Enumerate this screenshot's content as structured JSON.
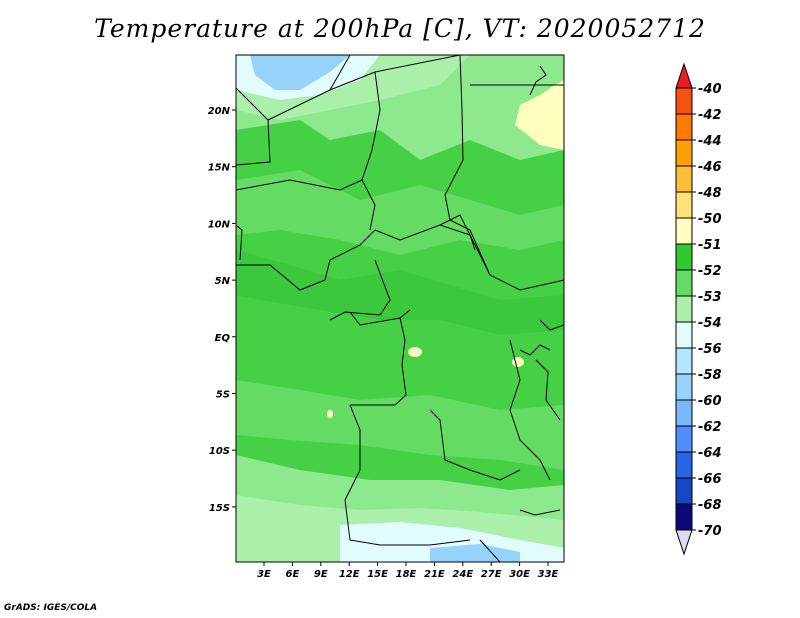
{
  "title": "Temperature at 200hPa [C], VT: 2020052712",
  "footer": "GrADS: IGES/COLA",
  "map": {
    "lon_labels": [
      "3E",
      "6E",
      "9E",
      "12E",
      "15E",
      "18E",
      "21E",
      "24E",
      "27E",
      "30E",
      "33E"
    ],
    "lat_labels": [
      "20N",
      "15N",
      "10N",
      "5N",
      "EQ",
      "5S",
      "10S",
      "15S"
    ]
  },
  "colorbar": {
    "labels": [
      "-40",
      "-42",
      "-44",
      "-46",
      "-48",
      "-50",
      "-51",
      "-52",
      "-53",
      "-54",
      "-56",
      "-58",
      "-60",
      "-62",
      "-64",
      "-66",
      "-68",
      "-70"
    ],
    "colors": [
      "#e81d1d",
      "#f7520f",
      "#ff7a00",
      "#ff9f00",
      "#fbbe3c",
      "#fde27a",
      "#ffffc0",
      "#32c832",
      "#64dc64",
      "#aaf0aa",
      "#e0fcfc",
      "#b4e6ff",
      "#96d2fa",
      "#78b9fa",
      "#508cfa",
      "#2864e6",
      "#1446c8",
      "#0a0a78",
      "#dcdcf2"
    ]
  }
}
